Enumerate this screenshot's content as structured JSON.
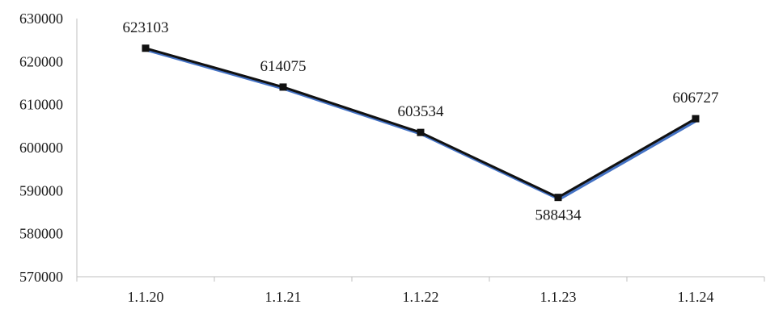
{
  "chart_data": {
    "type": "line",
    "title": "",
    "xlabel": "",
    "ylabel": "",
    "categories": [
      "1.1.20",
      "1.1.21",
      "1.1.22",
      "1.1.23",
      "1.1.24"
    ],
    "series": [
      {
        "values": [
          623103,
          614075,
          603534,
          588434,
          606727
        ],
        "data_labels": [
          "623103",
          "614075",
          "603534",
          "588434",
          "606727"
        ]
      }
    ],
    "ylim": [
      570000,
      630000
    ],
    "yticks": [
      "570000",
      "580000",
      "590000",
      "600000",
      "610000",
      "620000",
      "630000"
    ],
    "grid": false,
    "legend": "none",
    "colors": {
      "line": "#111111",
      "line_shadow": "#4472c4",
      "marker": "#111111",
      "axis": "#bfbfbf"
    }
  }
}
